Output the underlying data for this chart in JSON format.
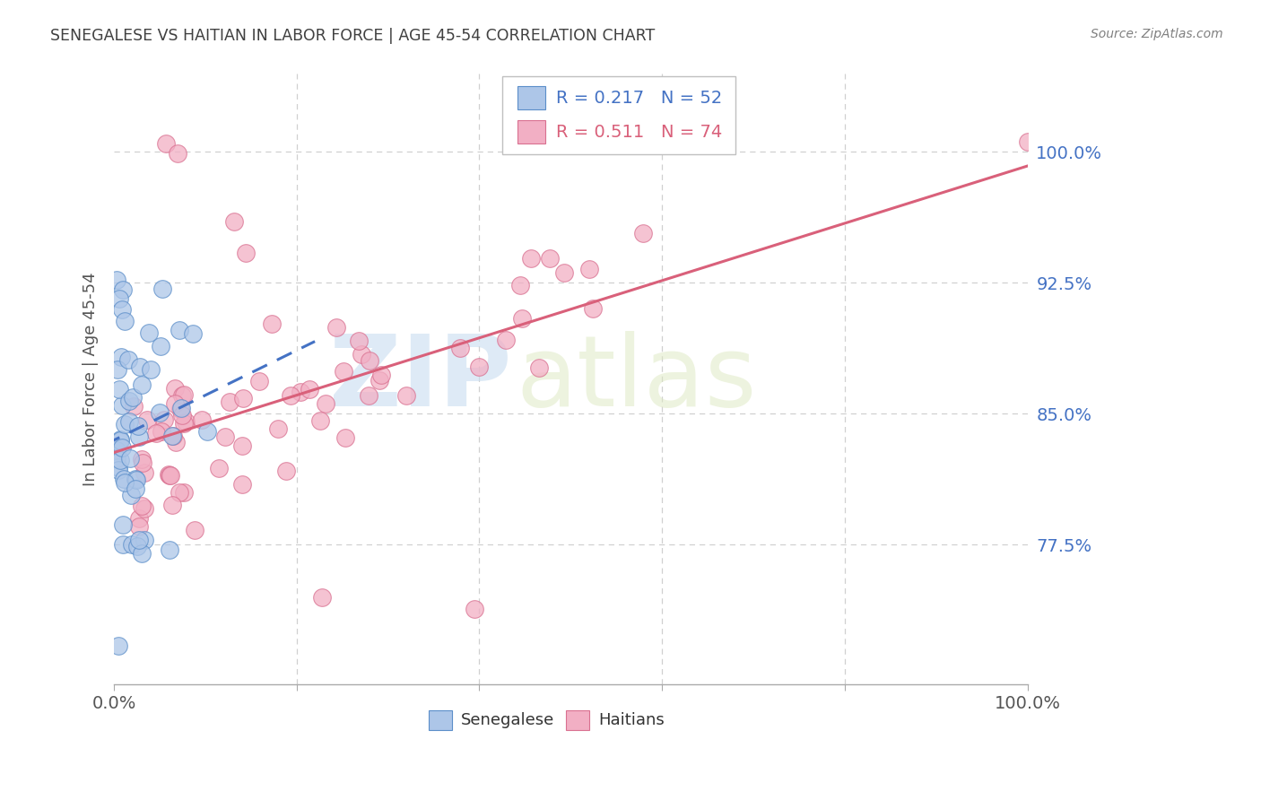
{
  "title": "SENEGALESE VS HAITIAN IN LABOR FORCE | AGE 45-54 CORRELATION CHART",
  "source": "Source: ZipAtlas.com",
  "ylabel": "In Labor Force | Age 45-54",
  "xlim": [
    0.0,
    1.0
  ],
  "ylim": [
    0.695,
    1.045
  ],
  "yticks": [
    0.775,
    0.85,
    0.925,
    1.0
  ],
  "ytick_labels": [
    "77.5%",
    "85.0%",
    "92.5%",
    "100.0%"
  ],
  "xtick_labels": [
    "0.0%",
    "",
    "",
    "",
    "",
    "",
    "100.0%"
  ],
  "blue_R": 0.217,
  "blue_N": 52,
  "pink_R": 0.511,
  "pink_N": 74,
  "blue_color": "#adc6e8",
  "pink_color": "#f2afc4",
  "blue_edge_color": "#5b8ec9",
  "pink_edge_color": "#d97090",
  "blue_line_color": "#4472c4",
  "pink_line_color": "#d9607a",
  "legend_blue_label": "Senegalese",
  "legend_pink_label": "Haitians",
  "watermark_zip": "ZIP",
  "watermark_atlas": "atlas",
  "background_color": "#ffffff",
  "grid_color": "#d0d0d0",
  "title_color": "#404040",
  "tick_label_color_blue": "#4472c4",
  "tick_label_color_x": "#555555",
  "source_color": "#808080"
}
